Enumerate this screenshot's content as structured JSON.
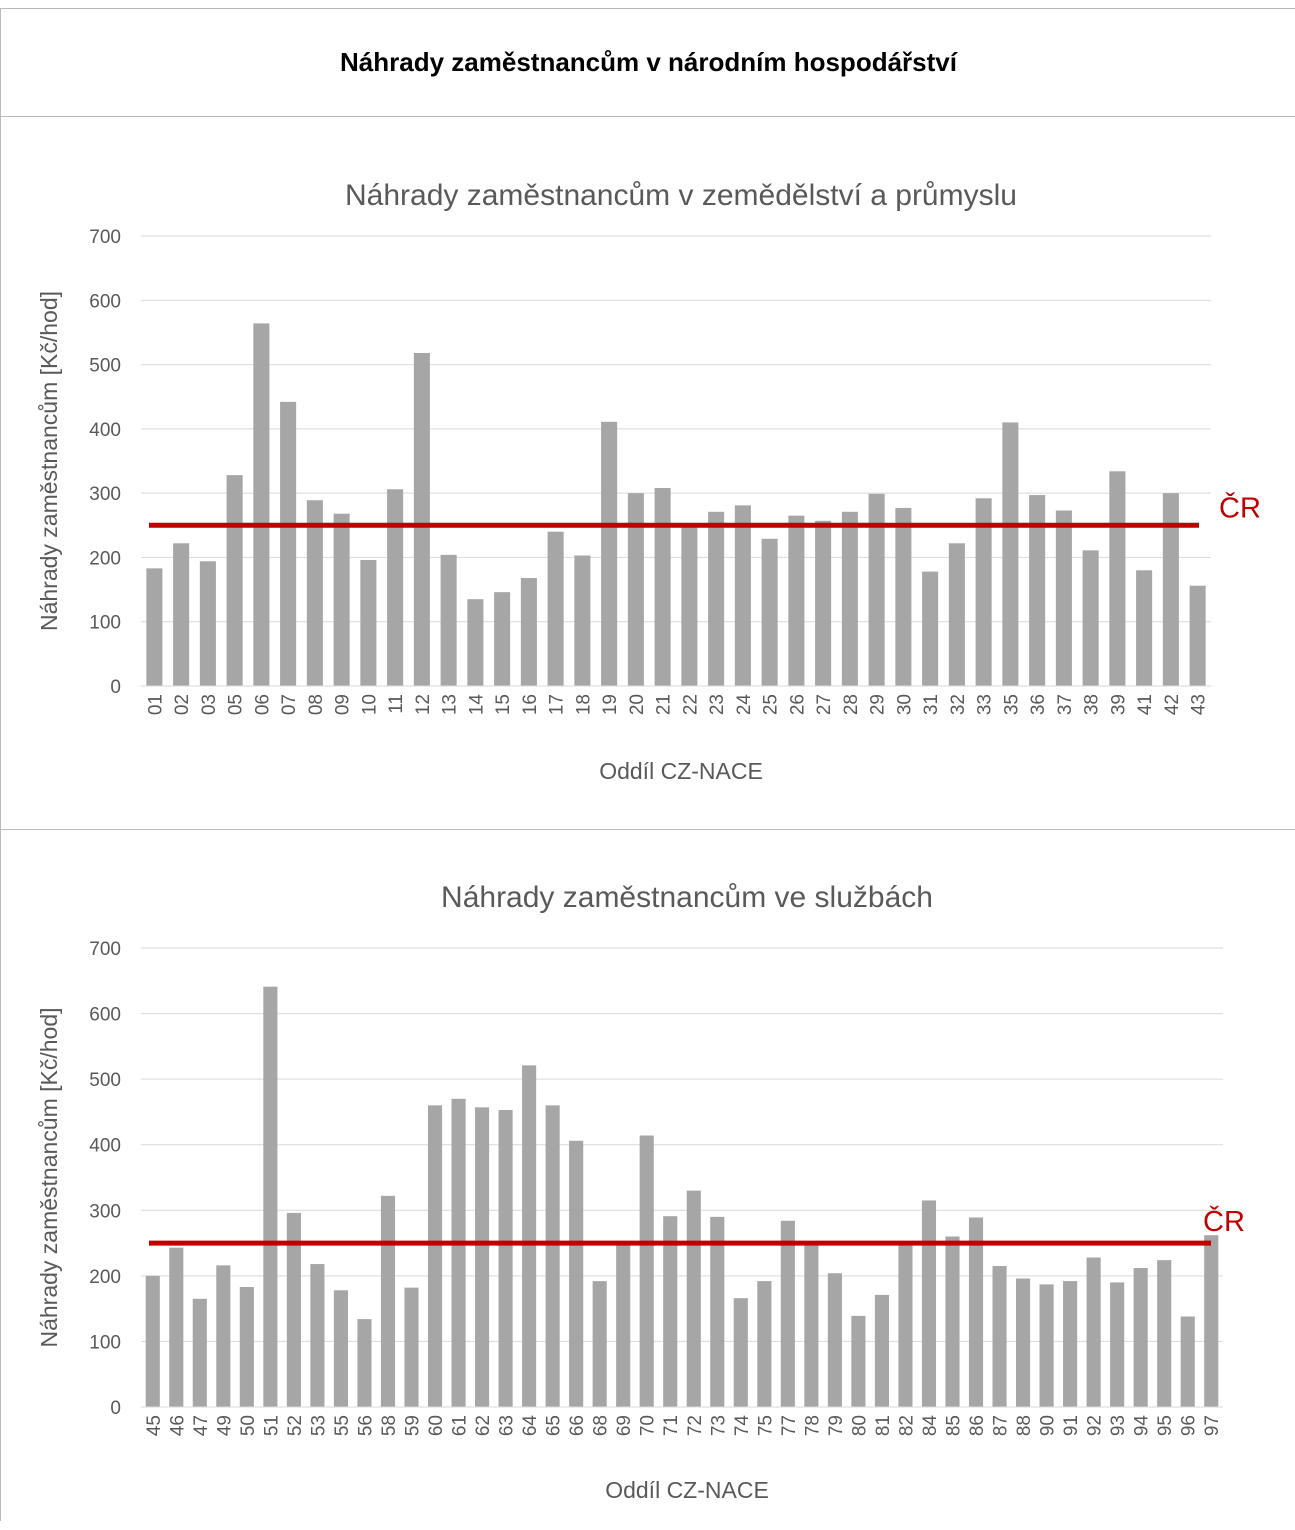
{
  "page_title": "Náhrady zaměstnancům v národním hospodářství",
  "colors": {
    "bar": "#a6a6a6",
    "cr_line": "#c00000",
    "grid": "#d9d9d9",
    "text": "#595959"
  },
  "chart_data": [
    {
      "type": "bar",
      "title": "Náhrady zaměstnancům v zemědělství a průmyslu",
      "xlabel": "Oddíl CZ-NACE",
      "ylabel": "Náhrady zaměstnancům [Kč/hod]",
      "ylim": [
        0,
        700
      ],
      "yticks": [
        0,
        100,
        200,
        300,
        400,
        500,
        600,
        700
      ],
      "grid": true,
      "categories": [
        "01",
        "02",
        "03",
        "05",
        "06",
        "07",
        "08",
        "09",
        "10",
        "11",
        "12",
        "13",
        "14",
        "15",
        "16",
        "17",
        "18",
        "19",
        "20",
        "21",
        "22",
        "23",
        "24",
        "25",
        "26",
        "27",
        "28",
        "29",
        "30",
        "31",
        "32",
        "33",
        "35",
        "36",
        "37",
        "38",
        "39",
        "41",
        "42",
        "43"
      ],
      "values": [
        183,
        222,
        194,
        328,
        564,
        442,
        289,
        268,
        196,
        306,
        518,
        204,
        135,
        146,
        168,
        240,
        203,
        411,
        300,
        308,
        251,
        271,
        281,
        229,
        265,
        257,
        271,
        299,
        277,
        178,
        222,
        292,
        410,
        297,
        273,
        211,
        334,
        180,
        300,
        156
      ],
      "reference_line": {
        "label": "ČR",
        "value": 250
      }
    },
    {
      "type": "bar",
      "title": "Náhrady zaměstnancům ve službách",
      "xlabel": "Oddíl CZ-NACE",
      "ylabel": "Náhrady zaměstnancům [Kč/hod]",
      "ylim": [
        0,
        700
      ],
      "yticks": [
        0,
        100,
        200,
        300,
        400,
        500,
        600,
        700
      ],
      "grid": true,
      "categories": [
        "45",
        "46",
        "47",
        "49",
        "50",
        "51",
        "52",
        "53",
        "55",
        "56",
        "58",
        "59",
        "60",
        "61",
        "62",
        "63",
        "64",
        "65",
        "66",
        "68",
        "69",
        "70",
        "71",
        "72",
        "73",
        "74",
        "75",
        "77",
        "78",
        "79",
        "80",
        "81",
        "82",
        "84",
        "85",
        "86",
        "87",
        "88",
        "90",
        "91",
        "92",
        "93",
        "94",
        "95",
        "96",
        "97"
      ],
      "values": [
        200,
        243,
        165,
        216,
        183,
        641,
        296,
        218,
        178,
        134,
        322,
        182,
        460,
        470,
        457,
        453,
        521,
        460,
        406,
        192,
        250,
        414,
        291,
        330,
        290,
        166,
        192,
        284,
        250,
        204,
        139,
        171,
        250,
        315,
        260,
        289,
        215,
        196,
        187,
        192,
        228,
        190,
        212,
        224,
        138,
        262
      ],
      "reference_line": {
        "label": "ČR",
        "value": 250
      }
    }
  ]
}
